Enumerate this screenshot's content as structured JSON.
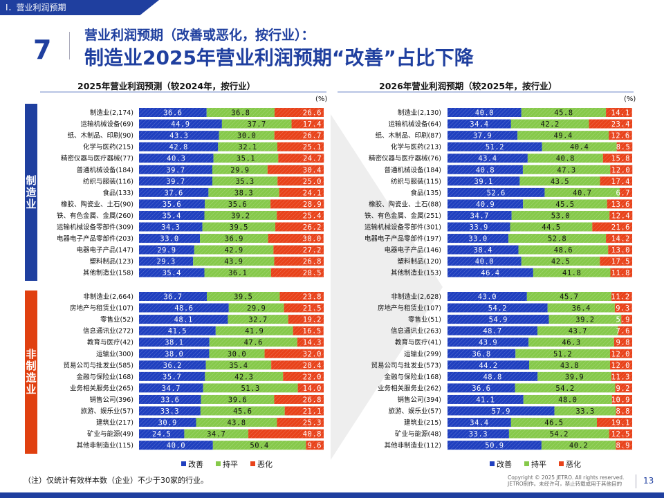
{
  "section": "Ⅰ．营业利润预期",
  "slide_number": "7",
  "title_line1": "营业利润预期（改善或恶化，按行业）：",
  "title_line2": "制造业2025年营业利润预期“改善”占比下降",
  "unit": "(%)",
  "group_labels": {
    "manufacturing": "制造业",
    "non_manufacturing": "非制造业"
  },
  "footnote": "（注）仅统计有效样本数（企业）不少于30家的行业。",
  "copyright_line1": "Copyright © 2025 JETRO. All rights reserved.",
  "copyright_line2": "JETRO制作。未经许可，禁止转载或用于其他目的",
  "page_number": "13",
  "colors": {
    "improve": "#1f3fbf",
    "flat": "#86c94a",
    "worsen": "#e8421a",
    "navy": "#1f3f9f",
    "red": "#e04010"
  },
  "chart_data": [
    {
      "type": "bar",
      "orientation": "horizontal-stacked-100",
      "title": "2025年营业利润预测（较2024年，按行业）",
      "legend": [
        "改善",
        "持平",
        "恶化"
      ],
      "categories": [
        "制造业(2,174)",
        "运输机械设备(69)",
        "纸、木制品、印刷(90)",
        "化学与医药(215)",
        "精密仪器与医疗器械(77)",
        "普通机械设备(184)",
        "纺织与服装(116)",
        "食品(133)",
        "橡胶、陶瓷业、土石(90)",
        "铁、有色金属、金属(260)",
        "运输机械设备零部件(309)",
        "电器电子产品零部件(203)",
        "电器电子产品(147)",
        "塑料制品(123)",
        "其他制造业(158)",
        "非制造业(2,664)",
        "房地产与租赁业(107)",
        "零售业(52)",
        "信息通讯业(272)",
        "教育与医疗(42)",
        "运输业(300)",
        "贸易公司与批发业(585)",
        "金融与保险业(168)",
        "业务相关服务业(265)",
        "销售公司(396)",
        "旅游、娱乐业(57)",
        "建筑业(217)",
        "矿业与能源(49)",
        "其他非制造业(115)"
      ],
      "series": [
        {
          "name": "改善",
          "values": [
            36.6,
            44.9,
            43.3,
            42.8,
            40.3,
            39.7,
            39.7,
            37.6,
            35.6,
            35.4,
            34.3,
            33.0,
            29.9,
            29.3,
            35.4,
            36.7,
            48.6,
            48.1,
            41.5,
            38.1,
            38.0,
            36.2,
            35.7,
            34.7,
            33.6,
            33.3,
            30.9,
            24.5,
            40.0
          ]
        },
        {
          "name": "持平",
          "values": [
            36.8,
            37.7,
            30.0,
            32.1,
            35.1,
            29.9,
            35.3,
            38.3,
            35.6,
            39.2,
            39.5,
            36.9,
            42.9,
            43.9,
            36.1,
            39.5,
            29.9,
            32.7,
            41.9,
            47.6,
            30.0,
            35.4,
            42.3,
            51.3,
            39.6,
            45.6,
            43.8,
            34.7,
            50.4
          ]
        },
        {
          "name": "恶化",
          "values": [
            26.6,
            17.4,
            26.7,
            25.1,
            24.7,
            30.4,
            25.0,
            24.1,
            28.9,
            25.4,
            26.2,
            30.0,
            27.2,
            26.8,
            28.5,
            23.8,
            21.5,
            19.2,
            16.5,
            14.3,
            32.0,
            28.4,
            22.0,
            14.0,
            26.8,
            21.1,
            25.3,
            40.8,
            9.6
          ]
        }
      ],
      "xlim": [
        0,
        100
      ]
    },
    {
      "type": "bar",
      "orientation": "horizontal-stacked-100",
      "title": "2026年营业利润预期（较2025年，按行业）",
      "legend": [
        "改善",
        "持平",
        "恶化"
      ],
      "categories": [
        "制造业(2,130)",
        "运输机械设备(64)",
        "纸、木制品、印刷(87)",
        "化学与医药(213)",
        "精密仪器与医疗器械(76)",
        "普通机械设备(184)",
        "纺织与服装(115)",
        "食品(135)",
        "橡胶、陶瓷业、土石(88)",
        "铁、有色金属、金属(251)",
        "运输机械设备零部件(301)",
        "电器电子产品零部件(197)",
        "电器电子产品(146)",
        "塑料制品(120)",
        "其他制造业(153)",
        "非制造业(2,628)",
        "房地产与租赁业(107)",
        "零售业(51)",
        "信息通讯业(263)",
        "教育与医疗(41)",
        "运输业(299)",
        "贸易公司与批发业(573)",
        "金融与保险业(168)",
        "业务相关服务业(262)",
        "销售公司(394)",
        "旅游、娱乐业(57)",
        "建筑业(215)",
        "矿业与能源(48)",
        "其他非制造业(112)"
      ],
      "series": [
        {
          "name": "改善",
          "values": [
            40.0,
            34.4,
            37.9,
            51.2,
            43.4,
            40.8,
            39.1,
            52.6,
            40.9,
            34.7,
            33.9,
            33.0,
            38.4,
            40.0,
            46.4,
            43.0,
            54.2,
            54.9,
            48.7,
            43.9,
            36.8,
            44.2,
            48.8,
            36.6,
            41.1,
            57.9,
            34.4,
            33.3,
            50.9
          ]
        },
        {
          "name": "持平",
          "values": [
            45.8,
            42.2,
            49.4,
            40.4,
            40.8,
            47.3,
            43.5,
            40.7,
            45.5,
            53.0,
            44.5,
            52.8,
            48.6,
            42.5,
            41.8,
            45.7,
            36.4,
            39.2,
            43.7,
            46.3,
            51.2,
            43.8,
            39.9,
            54.2,
            48.0,
            33.3,
            46.5,
            54.2,
            40.2
          ]
        },
        {
          "name": "恶化",
          "values": [
            14.1,
            23.4,
            12.6,
            8.5,
            15.8,
            12.0,
            17.4,
            6.7,
            13.6,
            12.4,
            21.6,
            14.2,
            13.0,
            17.5,
            11.8,
            11.2,
            9.3,
            5.9,
            7.6,
            9.8,
            12.0,
            12.0,
            11.3,
            9.2,
            10.9,
            8.8,
            19.1,
            12.5,
            8.9
          ]
        }
      ],
      "xlim": [
        0,
        100
      ]
    }
  ]
}
